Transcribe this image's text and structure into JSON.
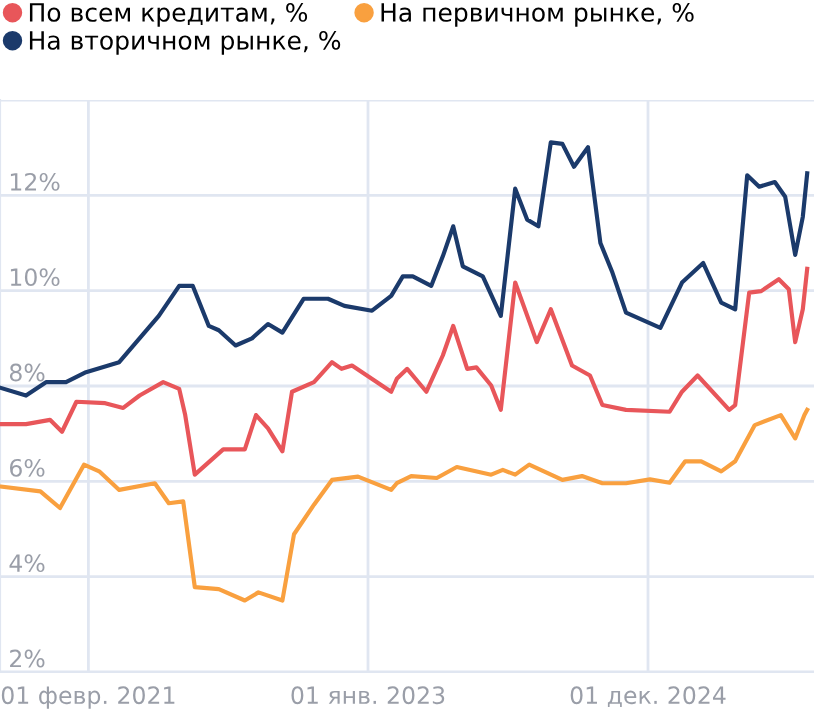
{
  "chart_data": {
    "type": "line",
    "series": [
      {
        "name": "По всем кредитам, %",
        "color": "#e8565a",
        "x": [
          "2020-06-27",
          "2020-08-29",
          "2020-10-28",
          "2020-11-27",
          "2021-01-02",
          "2021-03-15",
          "2021-04-29",
          "2021-06-09",
          "2021-08-07",
          "2021-09-16",
          "2021-10-01",
          "2021-10-25",
          "2022-01-04",
          "2022-02-27",
          "2022-03-27",
          "2022-04-26",
          "2022-06-01",
          "2022-06-25",
          "2022-08-19",
          "2022-10-03",
          "2022-10-27",
          "2022-11-22",
          "2023-02-28",
          "2023-03-14",
          "2023-04-09",
          "2023-05-27",
          "2023-07-07",
          "2023-08-02",
          "2023-09-06",
          "2023-09-29",
          "2023-11-05",
          "2023-11-29",
          "2024-01-04",
          "2024-02-27",
          "2024-04-02",
          "2024-05-25",
          "2024-07-09",
          "2024-08-09",
          "2024-10-07",
          "2025-01-24",
          "2025-02-24",
          "2025-04-04",
          "2025-06-22",
          "2025-07-07",
          "2025-08-11",
          "2025-09-10",
          "2025-10-24",
          "2025-11-18",
          "2025-12-04",
          "2025-12-23",
          "2026-01-03"
        ],
        "values": [
          7.2,
          7.2,
          7.29,
          7.04,
          7.67,
          7.64,
          7.54,
          7.8,
          8.08,
          7.94,
          7.39,
          6.14,
          6.67,
          6.67,
          7.39,
          7.11,
          6.63,
          7.88,
          8.08,
          8.5,
          8.36,
          8.43,
          7.88,
          8.15,
          8.36,
          7.88,
          8.64,
          9.26,
          8.36,
          8.39,
          8.01,
          7.5,
          10.17,
          8.92,
          9.61,
          8.43,
          8.22,
          7.6,
          7.5,
          7.46,
          7.88,
          8.22,
          7.5,
          7.6,
          9.96,
          9.99,
          10.24,
          10.03,
          8.92,
          9.61,
          10.46
        ]
      },
      {
        "name": "На первичном рынке, %",
        "color": "#f9a03f",
        "x": [
          "2020-06-27",
          "2020-10-04",
          "2020-11-22",
          "2021-01-21",
          "2021-02-28",
          "2021-04-19",
          "2021-07-17",
          "2021-08-21",
          "2021-09-26",
          "2021-10-25",
          "2021-12-24",
          "2022-02-27",
          "2022-04-02",
          "2022-06-01",
          "2022-06-30",
          "2022-08-19",
          "2022-10-03",
          "2022-12-07",
          "2023-02-28",
          "2023-03-14",
          "2023-04-19",
          "2023-06-22",
          "2023-08-11",
          "2023-11-05",
          "2023-12-04",
          "2024-01-04",
          "2024-02-08",
          "2024-05-01",
          "2024-06-19",
          "2024-08-09",
          "2024-10-07",
          "2024-12-06",
          "2025-01-24",
          "2025-03-04",
          "2025-04-13",
          "2025-06-02",
          "2025-07-07",
          "2025-08-25",
          "2025-10-29",
          "2025-12-04",
          "2025-12-27",
          "2026-01-03"
        ],
        "values": [
          5.89,
          5.79,
          5.44,
          6.35,
          6.21,
          5.82,
          5.96,
          5.54,
          5.58,
          3.78,
          3.74,
          3.5,
          3.67,
          3.5,
          4.89,
          5.51,
          6.03,
          6.1,
          5.82,
          5.96,
          6.11,
          6.07,
          6.3,
          6.14,
          6.24,
          6.14,
          6.35,
          6.03,
          6.11,
          5.96,
          5.96,
          6.04,
          5.97,
          6.42,
          6.42,
          6.21,
          6.42,
          7.18,
          7.39,
          6.9,
          7.39,
          7.5
        ]
      },
      {
        "name": "На вторичном рынке, %",
        "color": "#1b3a6b",
        "x": [
          "2020-06-27",
          "2020-08-29",
          "2020-10-18",
          "2020-12-07",
          "2021-01-26",
          "2021-04-19",
          "2021-07-27",
          "2021-09-16",
          "2021-10-20",
          "2021-11-29",
          "2021-12-24",
          "2022-02-04",
          "2022-03-17",
          "2022-04-26",
          "2022-06-01",
          "2022-07-24",
          "2022-09-23",
          "2022-11-03",
          "2023-01-11",
          "2023-02-28",
          "2023-03-29",
          "2023-04-23",
          "2023-06-08",
          "2023-07-07",
          "2023-08-02",
          "2023-08-26",
          "2023-10-15",
          "2023-11-29",
          "2024-01-04",
          "2024-02-03",
          "2024-03-02",
          "2024-04-02",
          "2024-05-01",
          "2024-05-30",
          "2024-07-04",
          "2024-08-04",
          "2024-09-03",
          "2024-10-07",
          "2025-01-01",
          "2025-02-24",
          "2025-04-18",
          "2025-06-02",
          "2025-07-07",
          "2025-08-06",
          "2025-09-05",
          "2025-10-14",
          "2025-11-09",
          "2025-12-04",
          "2025-12-23",
          "2026-01-03"
        ],
        "values": [
          7.96,
          7.8,
          8.08,
          8.08,
          8.29,
          8.5,
          9.47,
          10.1,
          10.1,
          9.26,
          9.17,
          8.85,
          9.0,
          9.3,
          9.12,
          9.83,
          9.83,
          9.68,
          9.58,
          9.89,
          10.3,
          10.3,
          10.1,
          10.72,
          11.35,
          10.51,
          10.3,
          9.47,
          12.14,
          11.49,
          11.35,
          13.11,
          13.08,
          12.6,
          13.01,
          11.0,
          10.38,
          9.54,
          9.22,
          10.17,
          10.58,
          9.75,
          9.61,
          12.42,
          12.18,
          12.28,
          11.97,
          10.75,
          11.55,
          12.46
        ]
      }
    ],
    "xlim": [
      "2020-06-25",
      "2026-01-20"
    ],
    "xticks": [
      {
        "value": "2021-02-01",
        "label": "01 февр. 2021"
      },
      {
        "value": "2023-01-01",
        "label": "01 янв. 2023"
      },
      {
        "value": "2024-12-01",
        "label": "01 дек. 2024"
      }
    ],
    "ylim": [
      2,
      14
    ],
    "yticks": [
      {
        "value": 2,
        "label": "2%"
      },
      {
        "value": 4,
        "label": "4%"
      },
      {
        "value": 6,
        "label": "6%"
      },
      {
        "value": 8,
        "label": "8%"
      },
      {
        "value": 10,
        "label": "10%"
      },
      {
        "value": 12,
        "label": "12%"
      },
      {
        "value": 14,
        "label": null
      }
    ],
    "grid": true,
    "legend": "top left",
    "marker": "none",
    "line_style": "solid"
  }
}
